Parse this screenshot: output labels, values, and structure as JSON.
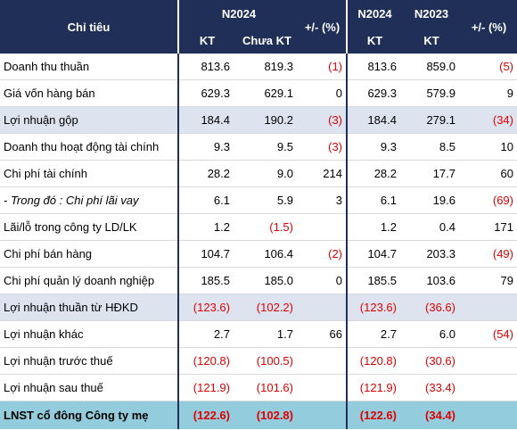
{
  "header": {
    "label": "Chỉ tiêu",
    "group1": "N2024",
    "group2_a": "N2024",
    "group2_b": "N2023",
    "sub_kt": "KT",
    "sub_chua_kt": "Chưa KT",
    "sub_kt2": "KT",
    "sub_kt3": "KT",
    "change1": "+/- (%)",
    "change2": "+/- (%)"
  },
  "rows": [
    {
      "label": "Doanh thu thuần",
      "v1": "813.6",
      "v2": "819.3",
      "v3": "(1)",
      "v4": "813.6",
      "v5": "859.0",
      "v6": "(5)"
    },
    {
      "label": "Giá vốn hàng bán",
      "v1": "629.3",
      "v2": "629.1",
      "v3": "0",
      "v4": "629.3",
      "v5": "579.9",
      "v6": "9"
    },
    {
      "label": "Lợi nhuận gộp",
      "v1": "184.4",
      "v2": "190.2",
      "v3": "(3)",
      "v4": "184.4",
      "v5": "279.1",
      "v6": "(34)"
    },
    {
      "label": "Doanh thu hoạt động tài chính",
      "v1": "9.3",
      "v2": "9.5",
      "v3": "(3)",
      "v4": "9.3",
      "v5": "8.5",
      "v6": "10"
    },
    {
      "label": "Chi phí tài chính",
      "v1": "28.2",
      "v2": "9.0",
      "v3": "214",
      "v4": "28.2",
      "v5": "17.7",
      "v6": "60"
    },
    {
      "label": "- Trong đó : Chi phí lãi vay",
      "v1": "6.1",
      "v2": "5.9",
      "v3": "3",
      "v4": "6.1",
      "v5": "19.6",
      "v6": "(69)"
    },
    {
      "label": "Lãi/lỗ trong công ty LD/LK",
      "v1": "1.2",
      "v2": "(1.5)",
      "v3": "",
      "v4": "1.2",
      "v5": "0.4",
      "v6": "171"
    },
    {
      "label": "Chi phí bán hàng",
      "v1": "104.7",
      "v2": "106.4",
      "v3": "(2)",
      "v4": "104.7",
      "v5": "203.3",
      "v6": "(49)"
    },
    {
      "label": "Chi phí quản lý doanh nghiệp",
      "v1": "185.5",
      "v2": "185.0",
      "v3": "0",
      "v4": "185.5",
      "v5": "103.6",
      "v6": "79"
    },
    {
      "label": "Lợi nhuận thuần từ HĐKD",
      "v1": "(123.6)",
      "v2": "(102.2)",
      "v3": "",
      "v4": "(123.6)",
      "v5": "(36.6)",
      "v6": ""
    },
    {
      "label": "Lợi nhuận khác",
      "v1": "2.7",
      "v2": "1.7",
      "v3": "66",
      "v4": "2.7",
      "v5": "6.0",
      "v6": "(54)"
    },
    {
      "label": "Lợi nhuận trước thuế",
      "v1": "(120.8)",
      "v2": "(100.5)",
      "v3": "",
      "v4": "(120.8)",
      "v5": "(30.6)",
      "v6": ""
    },
    {
      "label": "Lợi nhuận sau thuế",
      "v1": "(121.9)",
      "v2": "(101.6)",
      "v3": "",
      "v4": "(121.9)",
      "v5": "(33.4)",
      "v6": ""
    },
    {
      "label": "LNST cổ đông Công ty mẹ",
      "v1": "(122.6)",
      "v2": "(102.8)",
      "v3": "",
      "v4": "(122.6)",
      "v5": "(34.4)",
      "v6": ""
    }
  ],
  "colors": {
    "header_bg": "#1f2f57",
    "highlight_bg": "#dde4ef",
    "total_bg": "#93cddd",
    "negative": "#e00000"
  }
}
